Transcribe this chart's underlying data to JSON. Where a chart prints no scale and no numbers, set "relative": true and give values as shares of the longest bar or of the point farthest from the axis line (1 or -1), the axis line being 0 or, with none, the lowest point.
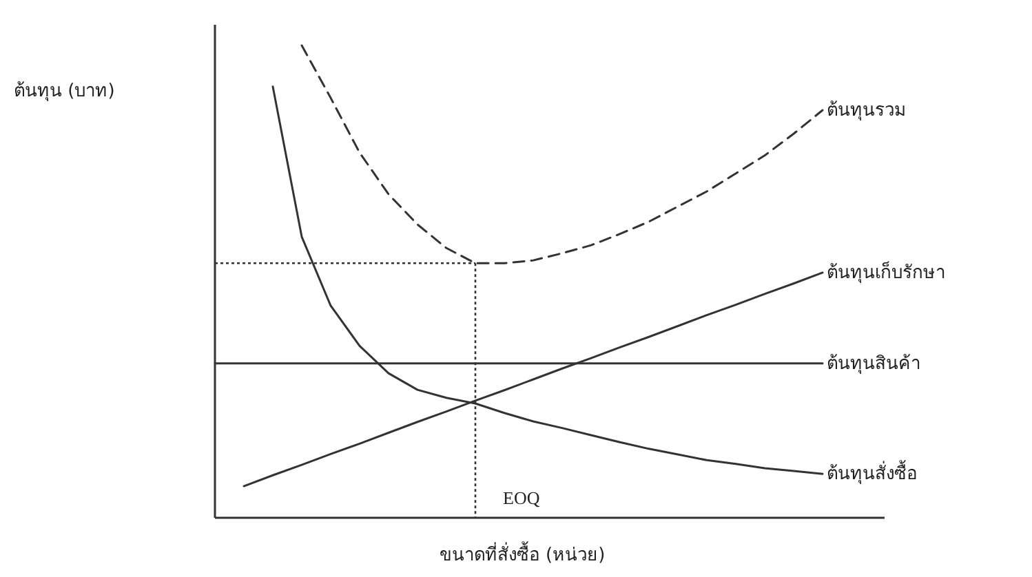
{
  "chart_data": {
    "type": "line",
    "relative": true,
    "xlabel": "ขนาดที่สั่งซื้อ (หน่วย)",
    "ylabel": "ต้นทุน (บาท)",
    "categories": [
      null,
      null,
      null,
      null,
      null,
      null,
      null,
      null,
      null,
      null,
      null,
      null,
      null,
      null,
      null,
      null,
      null,
      null,
      null,
      null,
      null,
      null
    ],
    "series": [
      {
        "name": "ต้นทุนรวม",
        "color": "#333333",
        "line_style": "dashed",
        "values": [
          null,
          null,
          null,
          1.0,
          0.889,
          0.773,
          0.685,
          0.621,
          0.571,
          0.539,
          0.539,
          0.545,
          0.56,
          0.577,
          0.601,
          0.627,
          0.659,
          0.691,
          0.729,
          0.767,
          0.813,
          0.863
        ]
      },
      {
        "name": "ต้นทุนเก็บรักษา",
        "color": "#333333",
        "line_style": "solid",
        "values": [
          null,
          0.067,
          0.09,
          0.112,
          0.135,
          0.157,
          0.18,
          0.203,
          0.225,
          0.248,
          0.27,
          0.293,
          0.316,
          0.338,
          0.361,
          0.383,
          0.406,
          0.429,
          0.451,
          0.474,
          0.496,
          0.519
        ]
      },
      {
        "name": "ต้นทุนสินค้า",
        "color": "#333333",
        "line_style": "solid",
        "values": [
          0.327,
          0.327,
          0.327,
          0.327,
          0.327,
          0.327,
          0.327,
          0.327,
          0.327,
          0.327,
          0.327,
          0.327,
          0.327,
          0.327,
          0.327,
          0.327,
          0.327,
          0.327,
          0.327,
          0.327,
          0.327,
          0.327
        ]
      },
      {
        "name": "ต้นทุนสั่งซื้อ",
        "color": "#333333",
        "line_style": "solid",
        "values": [
          null,
          null,
          0.913,
          0.595,
          0.449,
          0.364,
          0.306,
          0.271,
          0.254,
          0.242,
          0.222,
          0.204,
          0.19,
          0.175,
          0.16,
          0.146,
          0.134,
          0.122,
          0.114,
          0.105,
          0.099,
          0.093
        ]
      }
    ],
    "annotations": [
      "EOQ"
    ],
    "ref_lines": [
      {
        "axis": "y",
        "value": 0.539,
        "label": null,
        "line_style": "dotted"
      }
    ]
  }
}
